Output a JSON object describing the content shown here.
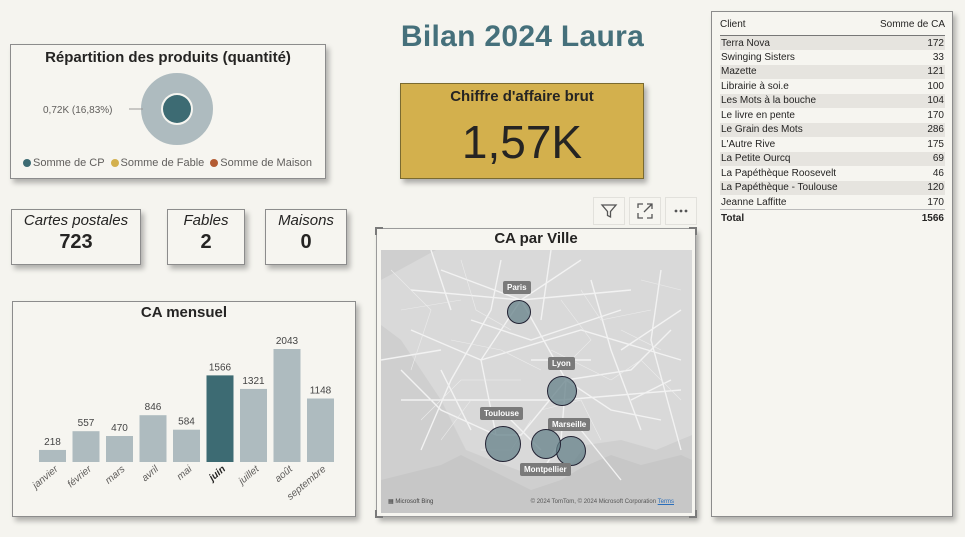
{
  "title": "Bilan 2024 Laura",
  "donut": {
    "title": "Répartition des produits (quantité)",
    "label": "0,72K (16,83%)",
    "legend": [
      {
        "label": "Somme de CP",
        "color": "#3d6b73"
      },
      {
        "label": "Somme de Fable",
        "color": "#d3b04d"
      },
      {
        "label": "Somme de Maison",
        "color": "#b35b32"
      }
    ]
  },
  "kpi": {
    "label": "Chiffre d'affaire brut",
    "value": "1,57K"
  },
  "cards": {
    "cp": {
      "label": "Cartes postales",
      "value": "723"
    },
    "fables": {
      "label": "Fables",
      "value": "2"
    },
    "maisons": {
      "label": "Maisons",
      "value": "0"
    }
  },
  "chart_data": {
    "type": "bar",
    "title": "CA mensuel",
    "categories": [
      "janvier",
      "février",
      "mars",
      "avril",
      "mai",
      "juin",
      "juillet",
      "août",
      "septembre"
    ],
    "values": [
      218,
      557,
      470,
      846,
      584,
      1566,
      1321,
      2043,
      1148
    ],
    "highlight": "juin",
    "colors": {
      "bar": "#aebbbf",
      "highlight": "#3d6b73"
    }
  },
  "map": {
    "title": "CA par Ville",
    "cities": [
      {
        "name": "Paris"
      },
      {
        "name": "Lyon"
      },
      {
        "name": "Toulouse"
      },
      {
        "name": "Marseille"
      },
      {
        "name": "Montpellier"
      }
    ],
    "credits": "© 2024 TomTom, © 2024 Microsoft Corporation",
    "terms": "Terms",
    "bing": "Microsoft Bing",
    "toolbar": [
      {
        "icon": "filter-icon"
      },
      {
        "icon": "focus-mode-icon"
      },
      {
        "icon": "more-options-icon"
      }
    ]
  },
  "table": {
    "headers": [
      "Client",
      "Somme de CA"
    ],
    "rows": [
      [
        "Terra Nova",
        "172"
      ],
      [
        "Swinging Sisters",
        "33"
      ],
      [
        "Mazette",
        "121"
      ],
      [
        "Librairie à soi.e",
        "100"
      ],
      [
        "Les Mots à la bouche",
        "104"
      ],
      [
        "Le livre en pente",
        "170"
      ],
      [
        "Le Grain des Mots",
        "286"
      ],
      [
        "L'Autre Rive",
        "175"
      ],
      [
        "La Petite Ourcq",
        "69"
      ],
      [
        "La Papéthèque Roosevelt",
        "46"
      ],
      [
        "La Papéthèque - Toulouse",
        "120"
      ],
      [
        "Jeanne Laffitte",
        "170"
      ]
    ],
    "total": [
      "Total",
      "1566"
    ]
  }
}
